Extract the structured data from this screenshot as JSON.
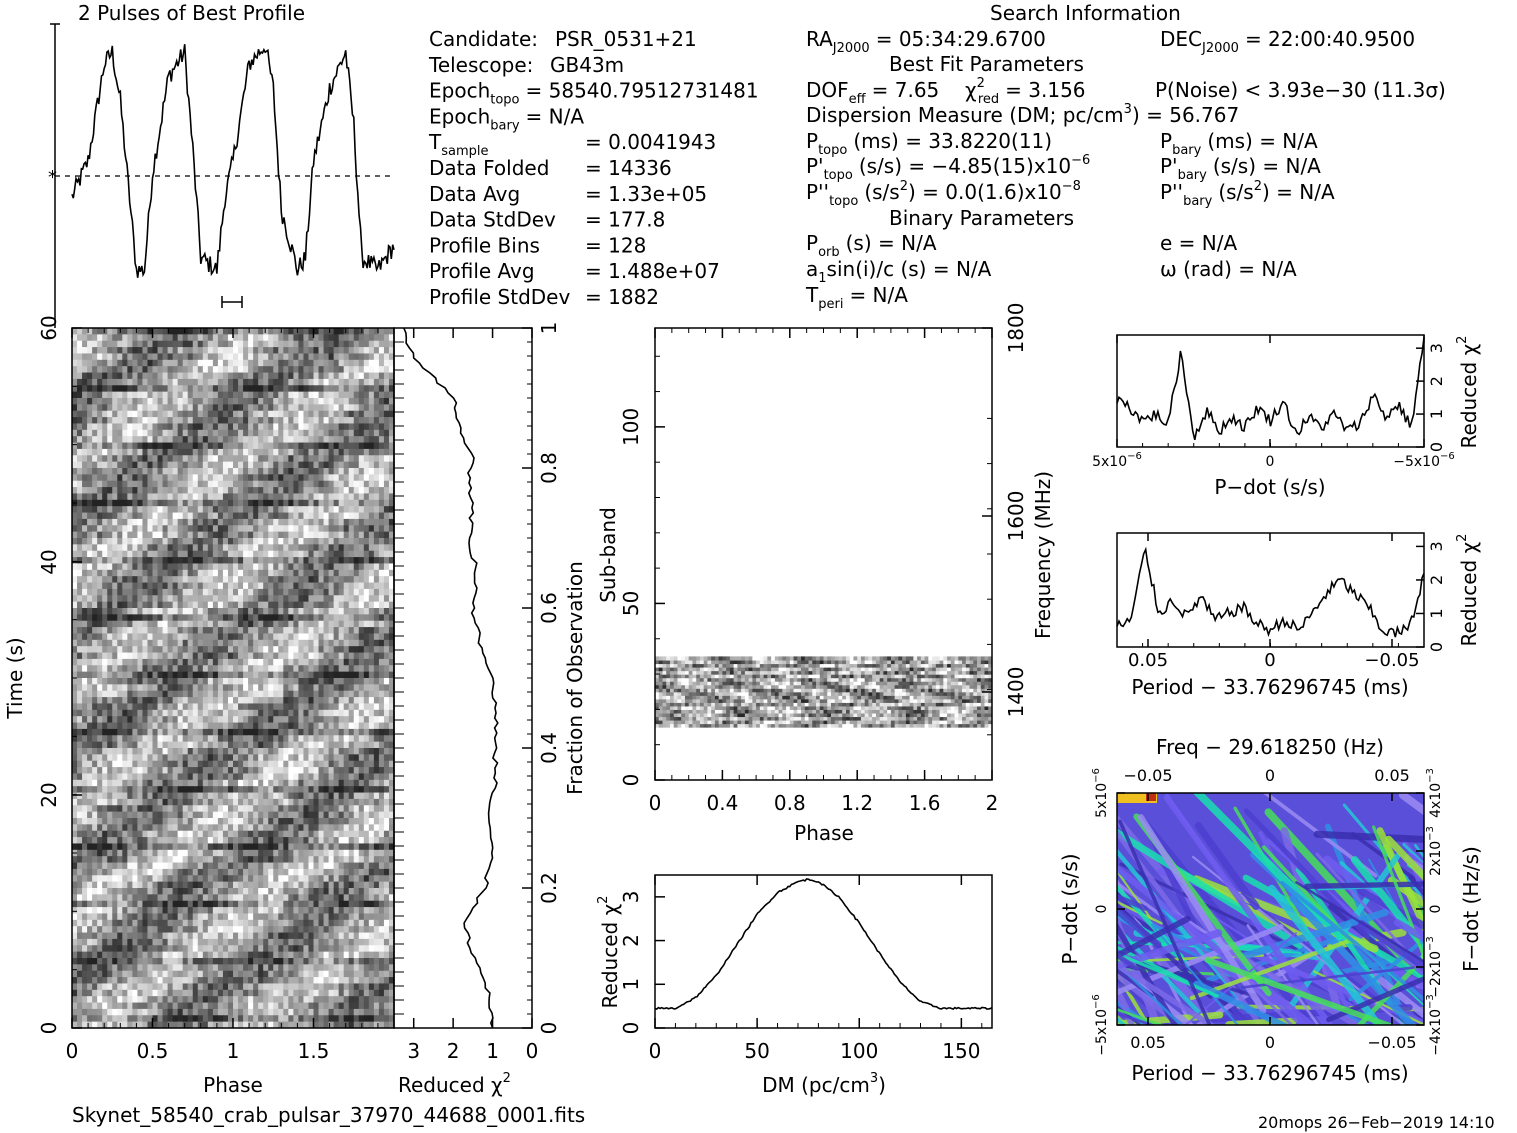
{
  "header": {
    "profile_title": "2 Pulses of Best Profile",
    "search_title": "Search Information",
    "best_fit_title": "Best Fit Parameters",
    "binary_title": "Binary Parameters"
  },
  "info_left": [
    {
      "label": "Candidate:",
      "value": "PSR_0531+21"
    },
    {
      "label": "Telescope:",
      "value": "GB43m"
    },
    {
      "label": "Epoch",
      "sub": "topo",
      "value": "= 58540.79512731481"
    },
    {
      "label": "Epoch",
      "sub": "bary",
      "value": "= N/A"
    },
    {
      "label": "T",
      "sub": "sample",
      "value": "=   0.0041943"
    },
    {
      "label": "Data Folded",
      "value": "=   14336"
    },
    {
      "label": "Data Avg",
      "value": "=   1.33e+05"
    },
    {
      "label": "Data StdDev",
      "value": "=   177.8"
    },
    {
      "label": "Profile Bins",
      "value": "=   128"
    },
    {
      "label": "Profile Avg",
      "value": "=   1.488e+07"
    },
    {
      "label": "Profile StdDev",
      "value": "=   1882"
    }
  ],
  "search_info": {
    "ra": "RA",
    "ra_sub": "J2000",
    "ra_value": "= 05:34:29.6700",
    "dec": "DEC",
    "dec_sub": "J2000",
    "dec_value": "= 22:00:40.9500",
    "dof": "DOF",
    "dof_sub": "eff",
    "dof_value": "= 7.65",
    "chi": "χ",
    "chi_sup": "2",
    "chi_sub": "red",
    "chi_value": "= 3.156",
    "noise": "P(Noise) < 3.93e−30   (11.3σ)",
    "dm_line": "Dispersion Measure (DM; pc/cm",
    "dm_sup": "3",
    "dm_value": ") = 56.767",
    "ptopo": "P",
    "ptopo_sub": "topo",
    "ptopo_value": "(ms) =  33.8220(11)",
    "pbary": "P",
    "pbary_sub": "bary",
    "pbary_value": "(ms) = N/A",
    "pdtopo": "P'",
    "pdtopo_sub": "topo",
    "pdtopo_value": "(s/s) = −4.85(15)x10",
    "pdtopo_sup": "−6",
    "pdbary": "P'",
    "pdbary_sub": "bary",
    "pdbary_value": "(s/s) = N/A",
    "pddtopo": "P''",
    "pddtopo_sub": "topo",
    "pddtopo_value": "(s/s",
    "pddtopo_value2": ") = 0.0(1.6)x10",
    "pddtopo_sup": "−8",
    "s2_sup": "2",
    "pddbary": "P''",
    "pddbary_sub": "bary",
    "pddbary_value": "(s/s",
    "pddbary_value2": ") = N/A",
    "porb": "P",
    "porb_sub": "orb",
    "porb_value": "(s) = N/A",
    "ecc": "e = N/A",
    "a1": "a",
    "a1_sub": "1",
    "a1_value": "sin(i)/c (s) = N/A",
    "omega": "ω (rad) = N/A",
    "tperi": "T",
    "tperi_sub": "peri",
    "tperi_value": "= N/A"
  },
  "footer": {
    "filename": "Skynet_58540_crab_pulsar_37970_44688_0001.fits",
    "stamp": "20mops 26−Feb−2019 14:10"
  },
  "chart_data": [
    {
      "type": "line",
      "title": "2 Pulses of Best Profile",
      "x": [
        0,
        0.1,
        0.2,
        0.25,
        0.3,
        0.4,
        0.45,
        0.5,
        0.6,
        0.7,
        0.75,
        0.8,
        0.9,
        0.95,
        1.0,
        1.1,
        1.2,
        1.25,
        1.3,
        1.4,
        1.45,
        1.5,
        1.6,
        1.7,
        1.75,
        1.8,
        1.9,
        1.95,
        2.0
      ],
      "values": [
        0.35,
        0.5,
        0.9,
        0.95,
        0.75,
        0.05,
        0.05,
        0.45,
        0.85,
        0.95,
        0.55,
        0.1,
        0.05,
        0.35,
        0.5,
        0.9,
        0.98,
        0.8,
        0.3,
        0.05,
        0.1,
        0.5,
        0.8,
        0.95,
        0.65,
        0.1,
        0.05,
        0.1,
        0.15
      ],
      "mean_line": 0.55
    },
    {
      "type": "heatmap",
      "xlabel": "Phase",
      "ylabel": "Time (s)",
      "xlim": [
        0,
        2
      ],
      "ylim": [
        0,
        60
      ],
      "xticks": [
        "0",
        "0.5",
        "1",
        "1.5"
      ],
      "yticks": [
        "0",
        "20",
        "40",
        "60"
      ]
    },
    {
      "type": "line",
      "xlabel": "Reduced χ",
      "ylabel": "Fraction of Observation",
      "xlim": [
        3.5,
        0
      ],
      "ylim": [
        0,
        1
      ],
      "xticks": [
        "3",
        "2",
        "1",
        "0"
      ],
      "yticks": [
        "0",
        "0.2",
        "0.4",
        "0.6",
        "0.8",
        "1"
      ],
      "x": [
        1.0,
        1.1,
        1.3,
        1.6,
        1.7,
        1.2,
        1.0,
        1.1,
        0.9,
        0.95,
        0.9,
        1.0,
        1.3,
        1.5,
        1.4,
        1.6,
        1.5,
        1.6,
        1.5,
        1.8,
        2.0,
        2.5,
        2.9,
        3.1,
        3.2,
        3.3
      ],
      "y": [
        0.0,
        0.05,
        0.08,
        0.12,
        0.15,
        0.2,
        0.25,
        0.3,
        0.35,
        0.4,
        0.45,
        0.5,
        0.55,
        0.6,
        0.65,
        0.7,
        0.75,
        0.78,
        0.82,
        0.85,
        0.9,
        0.93,
        0.95,
        0.97,
        0.99,
        1.0
      ]
    },
    {
      "type": "heatmap",
      "xlabel": "Phase",
      "ylabel": "Sub-band",
      "y2label": "Frequency (MHz)",
      "xlim": [
        0,
        2
      ],
      "ylim": [
        0,
        128
      ],
      "xticks": [
        "0",
        "0.4",
        "0.8",
        "1.2",
        "1.6",
        "2"
      ],
      "yticks": [
        "0",
        "50",
        "100"
      ],
      "y2ticks": [
        "1400",
        "1600",
        "1800"
      ],
      "filled_subbands": [
        15,
        35
      ]
    },
    {
      "type": "line",
      "xlabel": "DM (pc/cm",
      "xlabel_sup": "3",
      "xlabel_end": ")",
      "ylabel": "Reduced χ",
      "xlim": [
        0,
        165
      ],
      "ylim": [
        0,
        3.5
      ],
      "xticks": [
        "0",
        "50",
        "100",
        "150"
      ],
      "yticks": [
        "0",
        "1",
        "2",
        "3"
      ],
      "x": [
        0,
        10,
        20,
        30,
        40,
        50,
        60,
        70,
        75,
        80,
        90,
        100,
        110,
        120,
        130,
        140,
        150,
        165
      ],
      "y": [
        0.45,
        0.45,
        0.7,
        1.2,
        1.9,
        2.6,
        3.1,
        3.35,
        3.4,
        3.35,
        3.0,
        2.4,
        1.7,
        1.05,
        0.6,
        0.45,
        0.45,
        0.45
      ]
    },
    {
      "type": "line",
      "xlabel": "P−dot (s/s)",
      "ylabel": "Reduced χ",
      "xticks": [
        "5x10",
        "0",
        "−5x10"
      ],
      "xtick_sup": "−6",
      "yticks": [
        "0",
        "1",
        "2",
        "3"
      ],
      "ylim": [
        0,
        3.4
      ],
      "y": [
        1.5,
        1.2,
        0.8,
        1.0,
        0.7,
        2.9,
        0.3,
        1.1,
        0.5,
        0.9,
        0.6,
        1.2,
        0.8,
        1.4,
        0.4,
        0.9,
        0.6,
        1.0,
        0.5,
        0.7,
        1.6,
        0.9,
        1.3,
        0.6,
        3.3
      ]
    },
    {
      "type": "line",
      "xlabel": "Period − 33.76296745 (ms)",
      "ylabel": "Reduced χ",
      "xticks": [
        "0.05",
        "0",
        "−0.05"
      ],
      "yticks": [
        "0",
        "1",
        "2",
        "3"
      ],
      "ylim": [
        0,
        3.4
      ],
      "y": [
        0.6,
        0.8,
        2.9,
        1.0,
        1.4,
        0.9,
        1.5,
        0.8,
        1.0,
        1.2,
        0.7,
        0.5,
        0.8,
        0.5,
        1.0,
        1.6,
        2.0,
        1.6,
        1.2,
        0.5,
        0.4,
        0.6,
        2.2
      ]
    },
    {
      "type": "heatmap",
      "title": "Freq − 29.618250 (Hz)",
      "xlabel": "Period − 33.76296745 (ms)",
      "ylabel": "P−dot (s/s)",
      "y2label": "F−dot (Hz/s)",
      "xticks": [
        "0.05",
        "0",
        "−0.05"
      ],
      "x2ticks": [
        "−0.05",
        "0",
        "0.05"
      ],
      "yticks": [
        "5x10",
        "0",
        "−5x10"
      ],
      "ytick_sup": "−6",
      "y2ticks": [
        "−4x10",
        "−2x10",
        "0",
        "2x10",
        "4x10"
      ],
      "y2tick_sup": "−3"
    }
  ]
}
